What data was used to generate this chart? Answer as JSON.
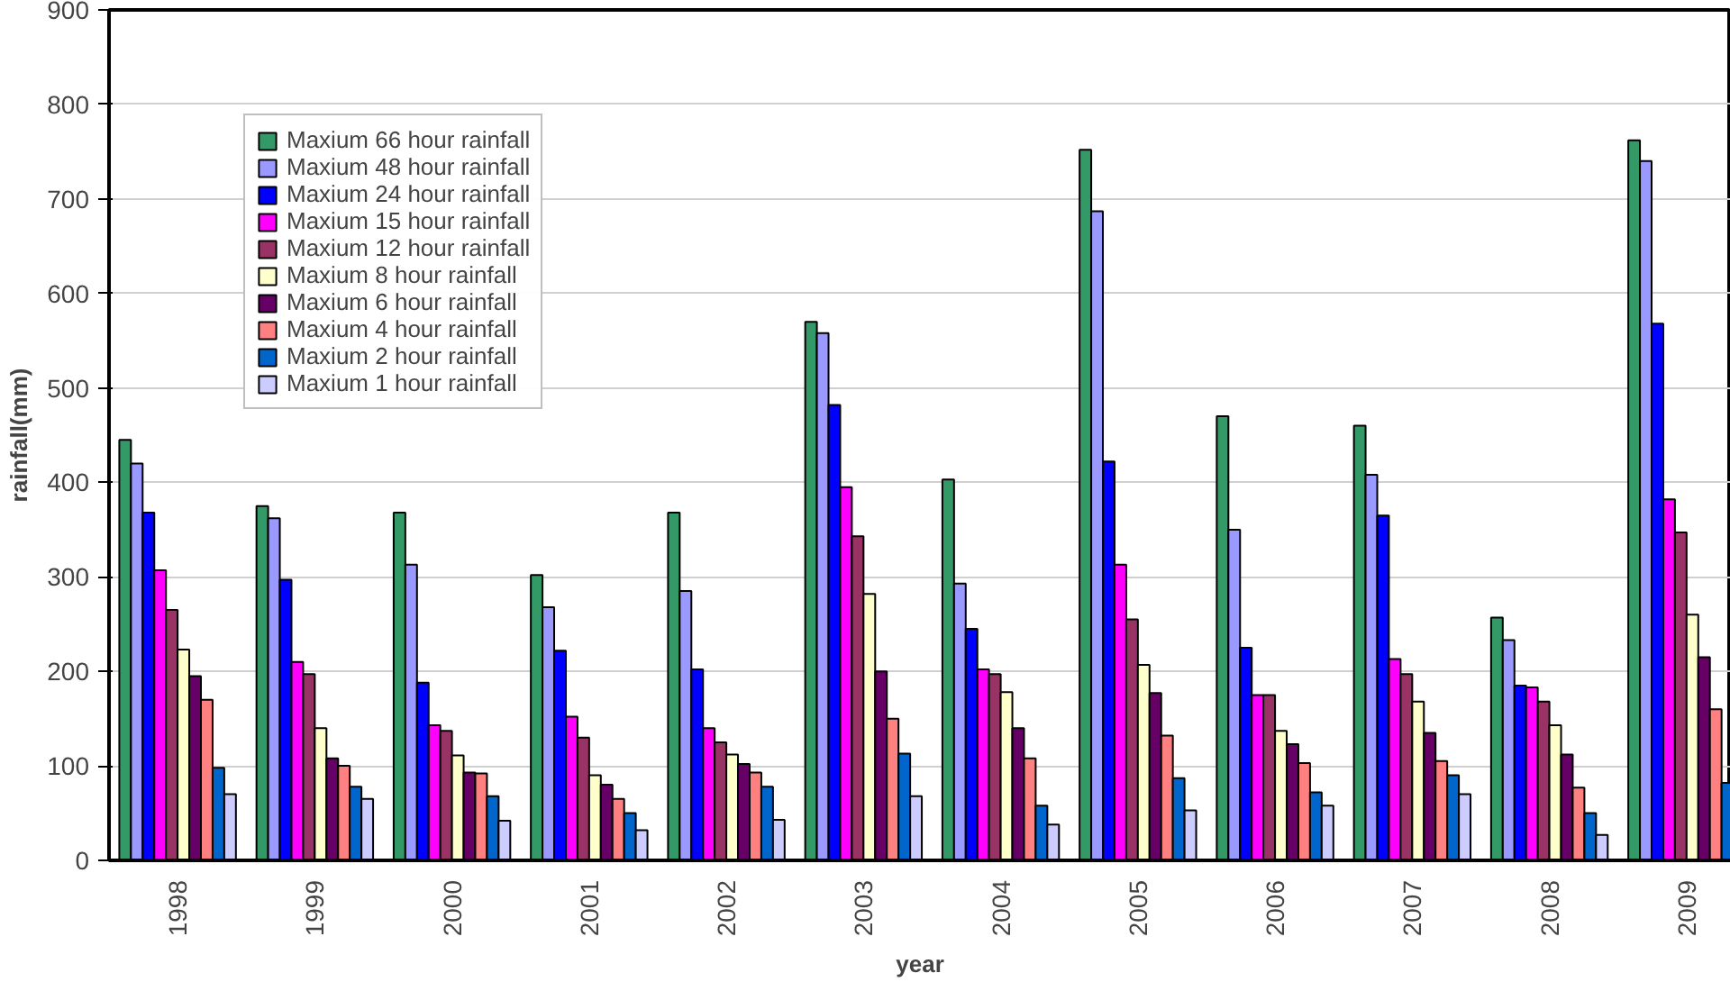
{
  "chart_data": {
    "type": "bar",
    "xlabel": "year",
    "ylabel": "rainfall(mm)",
    "categories": [
      "1998",
      "1999",
      "2000",
      "2001",
      "2002",
      "2003",
      "2004",
      "2005",
      "2006",
      "2007",
      "2008",
      "2009"
    ],
    "series": [
      {
        "name": "Maxium 66 hour rainfall",
        "color": "#339966",
        "values": [
          445,
          375,
          368,
          302,
          368,
          570,
          403,
          752,
          470,
          460,
          257,
          762
        ]
      },
      {
        "name": "Maxium 48 hour rainfall",
        "color": "#9999ff",
        "values": [
          420,
          362,
          313,
          268,
          285,
          558,
          293,
          687,
          350,
          408,
          233,
          740
        ]
      },
      {
        "name": "Maxium 24 hour rainfall",
        "color": "#0000ff",
        "values": [
          368,
          297,
          188,
          222,
          202,
          482,
          245,
          422,
          225,
          365,
          185,
          568
        ]
      },
      {
        "name": "Maxium 15 hour rainfall",
        "color": "#ff00ff",
        "values": [
          307,
          210,
          143,
          152,
          140,
          395,
          202,
          313,
          175,
          213,
          183,
          382
        ]
      },
      {
        "name": "Maxium 12 hour rainfall",
        "color": "#993366",
        "values": [
          265,
          197,
          137,
          130,
          125,
          343,
          197,
          255,
          175,
          197,
          168,
          347
        ]
      },
      {
        "name": "Maxium 8 hour rainfall",
        "color": "#ffffcc",
        "values": [
          223,
          140,
          111,
          90,
          112,
          282,
          178,
          207,
          137,
          168,
          143,
          260
        ]
      },
      {
        "name": "Maxium 6 hour rainfall",
        "color": "#660066",
        "values": [
          195,
          108,
          93,
          80,
          102,
          200,
          140,
          177,
          123,
          135,
          112,
          215
        ]
      },
      {
        "name": "Maxium 4 hour rainfall",
        "color": "#ff8080",
        "values": [
          170,
          100,
          92,
          65,
          93,
          150,
          108,
          132,
          103,
          105,
          77,
          160
        ]
      },
      {
        "name": "Maxium 2 hour rainfall",
        "color": "#0066cc",
        "values": [
          98,
          78,
          68,
          50,
          78,
          113,
          58,
          87,
          72,
          90,
          50,
          82
        ]
      },
      {
        "name": "Maxium 1 hour rainfall",
        "color": "#ccccff",
        "values": [
          70,
          65,
          42,
          32,
          43,
          68,
          38,
          53,
          58,
          70,
          27,
          null
        ]
      }
    ],
    "ylim": [
      0,
      900
    ],
    "yticks": [
      0,
      100,
      200,
      300,
      400,
      500,
      600,
      700,
      800,
      900
    ],
    "grid": "y",
    "legend": "top left"
  }
}
